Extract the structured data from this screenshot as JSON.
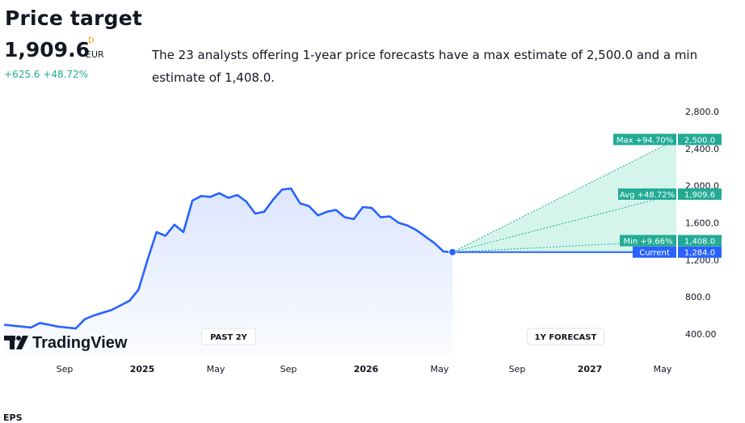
{
  "header": {
    "title": "Price target",
    "price": "1,909.6",
    "currency_flag": "D",
    "currency": "EUR",
    "change": "+625.6",
    "change_pct": "+48.72%",
    "summary": "The 23 analysts offering 1-year price forecasts have a max estimate of 2,500.0 and a min estimate of 1,408.0."
  },
  "chart_data": {
    "type": "line",
    "y_ticks": [
      "2,800.0",
      "2,400.0",
      "2,000.0",
      "1,600.0",
      "1,200.0",
      "800.0",
      "400.00"
    ],
    "x_ticks": [
      "Sep",
      "2025",
      "May",
      "Sep",
      "2026",
      "May",
      "Sep",
      "2027",
      "May"
    ],
    "x_ticks_bold": [
      "2025",
      "2026",
      "2027"
    ],
    "period_labels": {
      "past": "PAST 2Y",
      "forecast": "1Y FORECAST"
    },
    "ylim": [
      400,
      2800
    ],
    "history": {
      "name": "price",
      "t": [
        0,
        0.02,
        0.04,
        0.06,
        0.08,
        0.1,
        0.12,
        0.14,
        0.16,
        0.18,
        0.2,
        0.22,
        0.24,
        0.26,
        0.28,
        0.3,
        0.32,
        0.34,
        0.36,
        0.38,
        0.4,
        0.42,
        0.44,
        0.46,
        0.48,
        0.5,
        0.52,
        0.54,
        0.56,
        0.58,
        0.6,
        0.62,
        0.64,
        0.66,
        0.68,
        0.7,
        0.72,
        0.74,
        0.76,
        0.78,
        0.8,
        0.82,
        0.84,
        0.86,
        0.88,
        0.9,
        0.92,
        0.94,
        0.96,
        0.98,
        1.0
      ],
      "values": [
        500,
        490,
        480,
        470,
        520,
        500,
        480,
        470,
        460,
        560,
        600,
        630,
        660,
        710,
        760,
        880,
        1200,
        1500,
        1460,
        1580,
        1500,
        1840,
        1890,
        1880,
        1920,
        1870,
        1900,
        1830,
        1700,
        1720,
        1850,
        1960,
        1970,
        1810,
        1780,
        1680,
        1720,
        1740,
        1660,
        1640,
        1770,
        1760,
        1660,
        1670,
        1600,
        1570,
        1520,
        1450,
        1380,
        1290,
        1284
      ]
    },
    "forecast": {
      "current": {
        "label": "Current",
        "value": 1284.0,
        "value_label": "1,284.0"
      },
      "max": {
        "label": "Max +94.70%",
        "value": 2500.0,
        "value_label": "2,500.0"
      },
      "avg": {
        "label": "Avg +48.72%",
        "value": 1909.6,
        "value_label": "1,909.6"
      },
      "min": {
        "label": "Min +9.66%",
        "value": 1408.0,
        "value_label": "1,408.0"
      }
    },
    "colors": {
      "line": "#2962ff",
      "forecast": "#22ab94",
      "forecast_fill": "#d5f5ec",
      "current_label": "#2962ff"
    }
  },
  "branding": {
    "logo_text": "TradingView"
  },
  "footer": {
    "next_section": "EPS"
  }
}
